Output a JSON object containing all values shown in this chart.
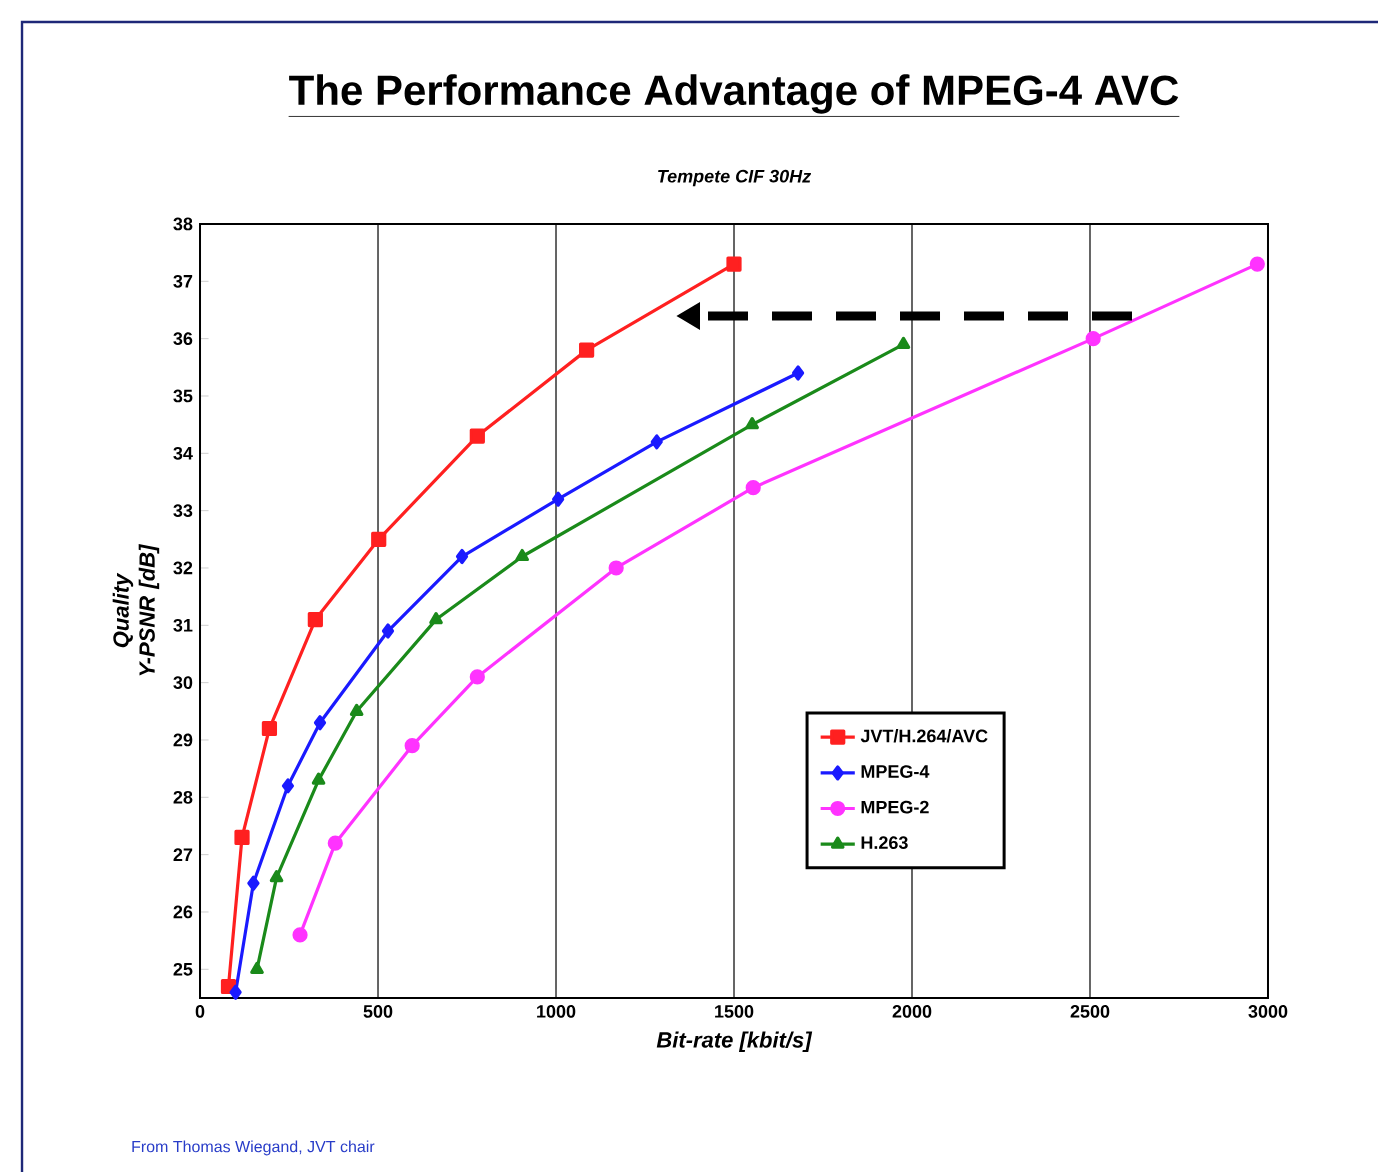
{
  "chart_data": {
    "type": "line",
    "title": "The Performance Advantage of MPEG-4 AVC",
    "subtitle": "Tempete CIF 30Hz",
    "xlabel": "Bit-rate [kbit/s]",
    "ylabel": "Quality Y-PSNR [dB]",
    "annotations": [
      "From Thomas Wiegand, JVT chair"
    ],
    "xlim": [
      0,
      3000
    ],
    "xticks": [
      0,
      500,
      1000,
      1500,
      2000,
      2500,
      3000
    ],
    "ylim": [
      24.5,
      38
    ],
    "yticks": [
      25,
      26,
      27,
      28,
      29,
      30,
      31,
      32,
      33,
      34,
      35,
      36,
      37,
      38
    ],
    "grid": "x",
    "legend": "bottom right",
    "series": [
      {
        "name": "JVT/H.264/AVC",
        "color": "#ff2020",
        "marker": "square",
        "x": [
          80,
          118,
          195,
          324,
          502,
          779,
          1086,
          1500
        ],
        "values": [
          24.7,
          27.3,
          29.2,
          31.1,
          32.5,
          34.3,
          35.8,
          37.3
        ]
      },
      {
        "name": "MPEG-4",
        "color": "#1a1aff",
        "marker": "diamond",
        "x": [
          100,
          150,
          247,
          337,
          528,
          736,
          1006,
          1283,
          1680
        ],
        "values": [
          24.6,
          26.5,
          28.2,
          29.3,
          30.9,
          32.2,
          33.2,
          34.2,
          35.4
        ]
      },
      {
        "name": "MPEG-2",
        "color": "#ff33ff",
        "marker": "circle",
        "x": [
          281,
          380,
          596,
          779,
          1169,
          1554,
          2509,
          2970
        ],
        "values": [
          25.6,
          27.2,
          28.9,
          30.1,
          32.0,
          33.4,
          36.0,
          37.3
        ]
      },
      {
        "name": "H.263",
        "color": "#1a8a1a",
        "marker": "triangle",
        "x": [
          160,
          215,
          333,
          440,
          663,
          905,
          1551,
          1976
        ],
        "values": [
          25.0,
          26.6,
          28.3,
          29.5,
          31.1,
          32.2,
          34.5,
          35.9
        ]
      }
    ]
  }
}
